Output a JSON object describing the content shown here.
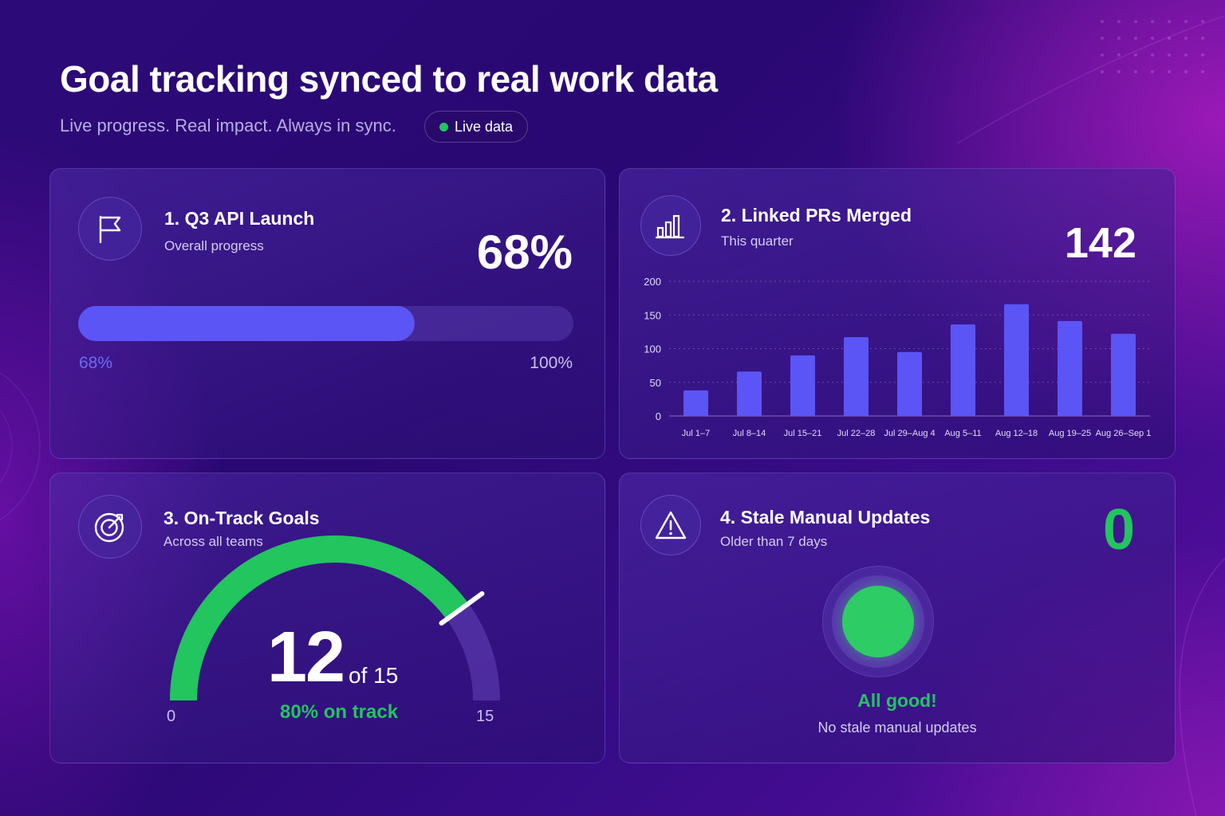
{
  "header": {
    "title": "Goal tracking synced to real work data",
    "subtitle": "Live progress. Real impact. Always in sync.",
    "live_badge": "Live data"
  },
  "colors": {
    "accent": "#5b55f6",
    "success": "#22c55e",
    "background": "#2c0a78"
  },
  "cards": {
    "q3": {
      "icon": "flag-icon",
      "title": "1. Q3 API Launch",
      "subtitle": "Overall progress",
      "value": "68%",
      "progress": 0.68,
      "left_label": "68%",
      "right_label": "100%"
    },
    "prs": {
      "icon": "bar-chart-icon",
      "title": "2. Linked PRs Merged",
      "subtitle": "This quarter",
      "value": "142"
    },
    "ontrack": {
      "icon": "target-icon",
      "title": "3. On-Track Goals",
      "subtitle": "Across all teams",
      "count": "12",
      "of_label": "of 15",
      "percent_label": "80% on track",
      "min_label": "0",
      "max_label": "15",
      "fraction": 0.8
    },
    "stale": {
      "icon": "warning-icon",
      "title": "4. Stale Manual Updates",
      "subtitle": "Older than 7 days",
      "value": "0",
      "status": "All good!",
      "status_detail": "No stale manual updates"
    }
  },
  "chart_data": {
    "type": "bar",
    "categories": [
      "Jul 1–7",
      "Jul 8–14",
      "Jul 15–21",
      "Jul 22–28",
      "Jul 29–Aug 4",
      "Aug 5–11",
      "Aug 12–18",
      "Aug 19–25",
      "Aug 26–Sep 1"
    ],
    "values": [
      38,
      66,
      90,
      117,
      95,
      136,
      166,
      141,
      122
    ],
    "ylim": [
      0,
      200
    ],
    "yticks": [
      0,
      50,
      100,
      150,
      200
    ],
    "grid": true,
    "bar_color": "#5b55f6"
  }
}
